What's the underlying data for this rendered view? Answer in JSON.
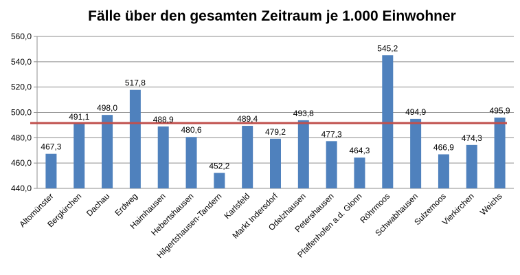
{
  "chart_data": {
    "type": "bar",
    "title": "Fälle über den gesamten Zeitraum je 1.000 Einwohner",
    "xlabel": "",
    "ylabel": "",
    "ylim": [
      440,
      560
    ],
    "y_ticks": [
      440,
      460,
      480,
      500,
      520,
      540,
      560
    ],
    "y_tick_labels": [
      "440,0",
      "460,0",
      "480,0",
      "500,0",
      "520,0",
      "540,0",
      "560,0"
    ],
    "grid": true,
    "categories": [
      "Altomünster",
      "Bergkirchen",
      "Dachau",
      "Erdweg",
      "Haimhausen",
      "Hebertshausen",
      "Hilgertshausen-Tandern",
      "Karlsfeld",
      "Markt Indersdorf",
      "Odelzhausen",
      "Petershausen",
      "Pfaffenhofen a.d. Glonn",
      "Röhrmoos",
      "Schwabhausen",
      "Sulzemoos",
      "Vierkirchen",
      "Weichs"
    ],
    "values": [
      467.3,
      491.1,
      498.0,
      517.8,
      488.9,
      480.6,
      452.2,
      489.4,
      479.2,
      493.8,
      477.3,
      464.3,
      545.2,
      494.9,
      466.9,
      474.3,
      495.9
    ],
    "value_labels": [
      "467,3",
      "491,1",
      "498,0",
      "517,8",
      "488,9",
      "480,6",
      "452,2",
      "489,4",
      "479,2",
      "493,8",
      "477,3",
      "464,3",
      "545,2",
      "494,9",
      "466,9",
      "474,3",
      "495,9"
    ],
    "average_line": 491.6,
    "bar_color": "#4f81bd",
    "average_line_color": "#c0504d"
  }
}
